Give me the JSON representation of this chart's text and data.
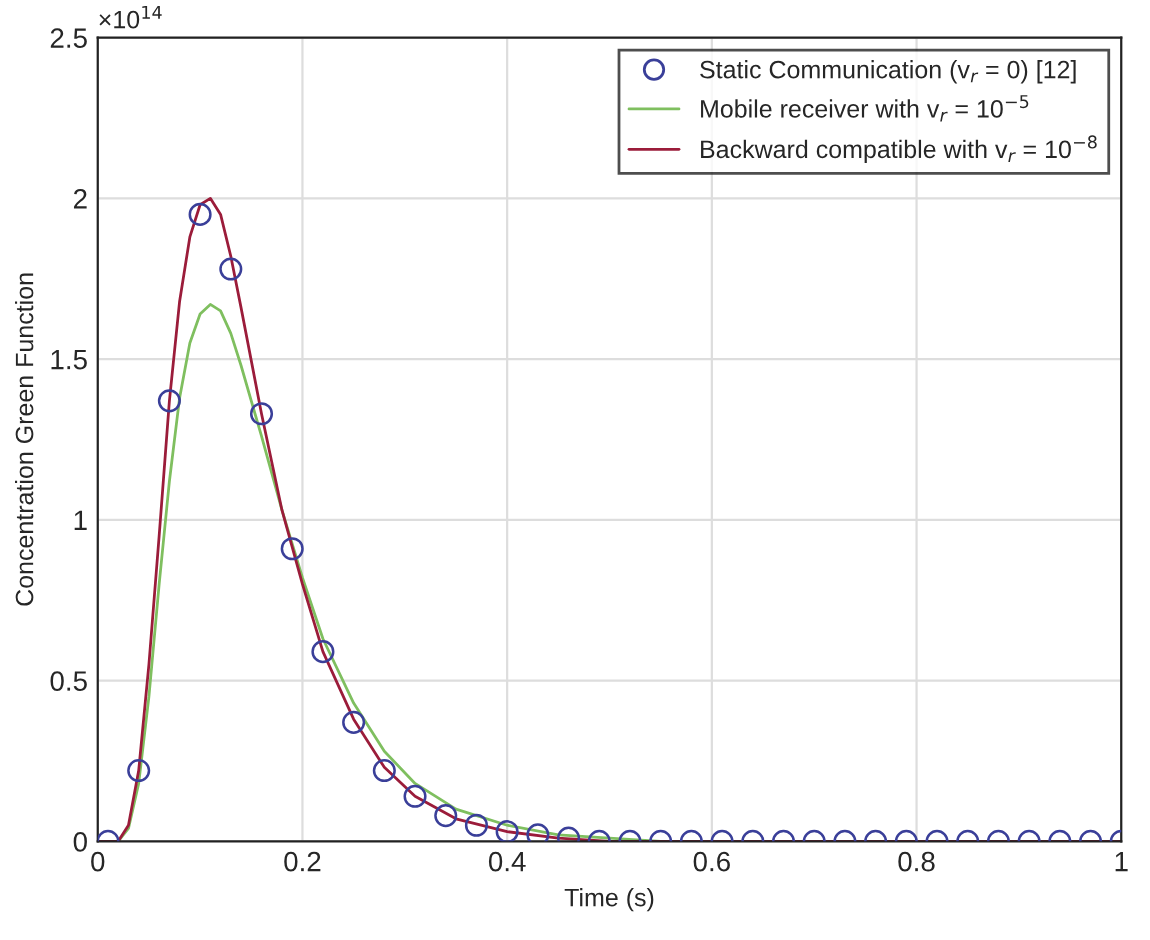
{
  "chart_data": {
    "type": "line",
    "xlabel": "Time (s)",
    "ylabel": "Concentration Green Function",
    "annotations": [
      "×10$^{14}$"
    ],
    "xlim": [
      0,
      1
    ],
    "xticks": [
      0,
      0.2,
      0.4,
      0.6,
      0.8,
      1
    ],
    "ylim": [
      0,
      2.5
    ],
    "yticks": [
      0,
      0.5,
      1,
      1.5,
      2,
      2.5
    ],
    "grid": true,
    "legend": "top right",
    "series": [
      {
        "name": "Static Communication (v$_{r}$ = 0) [12]",
        "type": "scatter",
        "marker": "circle",
        "color": "#3a3f99",
        "x": [
          0.01,
          0.04,
          0.07,
          0.1,
          0.13,
          0.16,
          0.19,
          0.22,
          0.25,
          0.28,
          0.31,
          0.34,
          0.37,
          0.4,
          0.43,
          0.46,
          0.49,
          0.52,
          0.55,
          0.58,
          0.61,
          0.64,
          0.67,
          0.7,
          0.73,
          0.76,
          0.79,
          0.82,
          0.85,
          0.88,
          0.91,
          0.94,
          0.97,
          1.0
        ],
        "values": [
          0,
          0.22,
          1.37,
          1.95,
          1.78,
          1.33,
          0.91,
          0.59,
          0.37,
          0.22,
          0.14,
          0.08,
          0.05,
          0.03,
          0.02,
          0.01,
          0,
          0,
          0,
          0,
          0,
          0,
          0,
          0,
          0,
          0,
          0,
          0,
          0,
          0,
          0,
          0,
          0,
          0
        ]
      },
      {
        "name": "Mobile receiver with v$_{r}$ = 10$^{−5}$",
        "color": "#7fbf5f",
        "x": [
          0,
          0.02,
          0.03,
          0.04,
          0.05,
          0.06,
          0.07,
          0.08,
          0.09,
          0.1,
          0.11,
          0.12,
          0.13,
          0.14,
          0.16,
          0.18,
          0.2,
          0.22,
          0.25,
          0.28,
          0.31,
          0.35,
          0.4,
          0.45,
          0.5,
          0.55,
          1.0
        ],
        "values": [
          0,
          0,
          0.04,
          0.18,
          0.45,
          0.8,
          1.12,
          1.38,
          1.55,
          1.64,
          1.67,
          1.65,
          1.58,
          1.48,
          1.26,
          1.03,
          0.82,
          0.63,
          0.43,
          0.28,
          0.18,
          0.1,
          0.05,
          0.02,
          0.01,
          0,
          0
        ]
      },
      {
        "name": "Backward compatible with v$_{r}$ = 10$^{−8}$",
        "color": "#9b1c3a",
        "x": [
          0,
          0.02,
          0.03,
          0.04,
          0.05,
          0.06,
          0.07,
          0.08,
          0.09,
          0.1,
          0.11,
          0.12,
          0.13,
          0.14,
          0.16,
          0.18,
          0.2,
          0.22,
          0.25,
          0.28,
          0.31,
          0.35,
          0.4,
          0.45,
          0.5,
          1.0
        ],
        "values": [
          0,
          0,
          0.05,
          0.22,
          0.55,
          0.95,
          1.37,
          1.68,
          1.88,
          1.98,
          2.0,
          1.95,
          1.82,
          1.66,
          1.33,
          1.03,
          0.8,
          0.59,
          0.38,
          0.23,
          0.14,
          0.07,
          0.03,
          0.01,
          0,
          0
        ]
      }
    ]
  }
}
